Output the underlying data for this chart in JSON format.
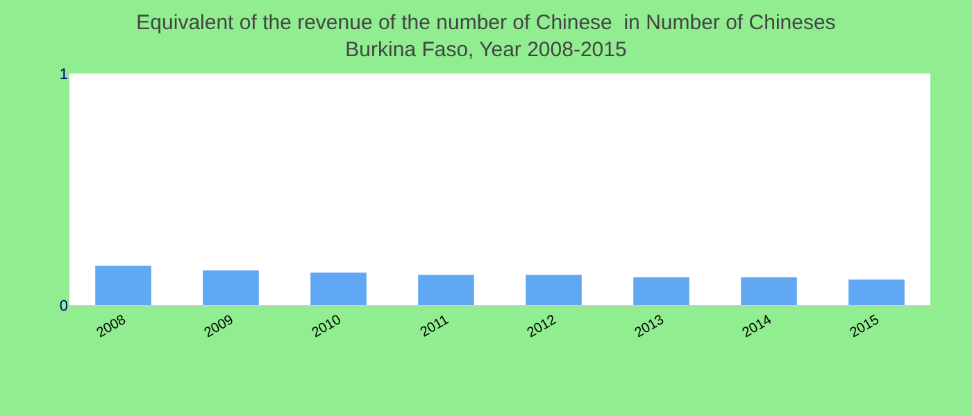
{
  "chart_data": {
    "type": "bar",
    "title": "Equivalent of the revenue of the number of Chinese  in Number of Chineses",
    "subtitle": "Burkina Faso, Year 2008-2015",
    "categories": [
      "2008",
      "2009",
      "2010",
      "2011",
      "2012",
      "2013",
      "2014",
      "2015"
    ],
    "values": [
      0.17,
      0.15,
      0.14,
      0.13,
      0.13,
      0.12,
      0.12,
      0.11
    ],
    "color": "#60a8f4",
    "ylim": [
      0,
      1
    ],
    "yticks": [
      0,
      1
    ]
  }
}
